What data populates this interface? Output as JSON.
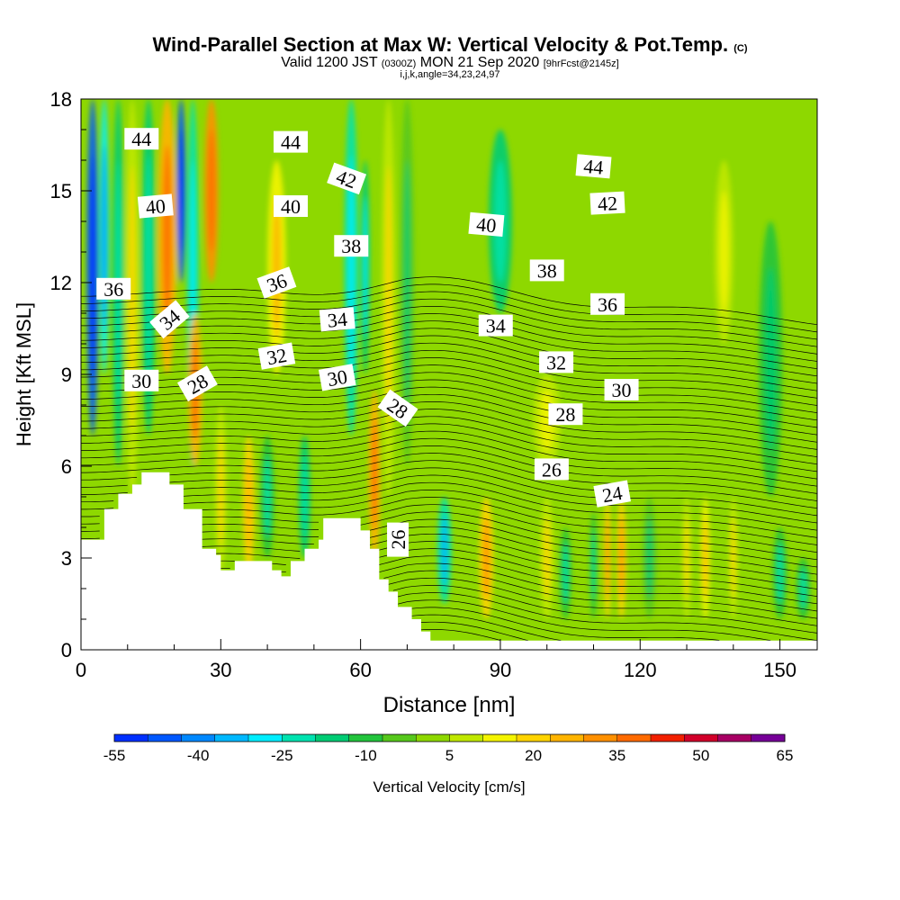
{
  "title": {
    "main": "Wind-Parallel Section at Max W: Vertical Velocity & Pot.Temp.",
    "copyright": "(C)",
    "valid_prefix": "Valid 1200 JST",
    "valid_utc": "(0300Z)",
    "valid_date": "MON 21 Sep 2020",
    "fcst": "[9hrFcst@2145z]",
    "indices": "i,j,k,angle=34,23,24,97"
  },
  "chart_data": {
    "type": "heatmap",
    "xlabel": "Distance [nm]",
    "ylabel": "Height [Kft MSL]",
    "xlim": [
      0,
      158
    ],
    "ylim": [
      0,
      18
    ],
    "x_ticks": [
      "0",
      "30",
      "60",
      "90",
      "120",
      "150"
    ],
    "y_ticks": [
      "0",
      "3",
      "6",
      "9",
      "12",
      "15",
      "18"
    ],
    "colorbar": {
      "label": "Vertical Velocity [cm/s]",
      "tick_labels": [
        "-55",
        "-40",
        "-25",
        "-10",
        "5",
        "20",
        "35",
        "50",
        "65"
      ],
      "colors": [
        "#0030ff",
        "#0058ff",
        "#0088ff",
        "#00b8ff",
        "#00eeff",
        "#00e3b0",
        "#00cc74",
        "#22c43c",
        "#56c81c",
        "#8ed800",
        "#c0e800",
        "#f4f400",
        "#ffd400",
        "#ffb400",
        "#ff9000",
        "#ff6a00",
        "#f22000",
        "#d2002a",
        "#a80064",
        "#760098"
      ],
      "range": [
        -55,
        65
      ]
    },
    "terrain_profile": {
      "x": [
        0,
        3,
        3,
        5,
        5,
        8,
        8,
        11,
        11,
        13,
        13,
        19,
        19,
        22,
        22,
        26,
        26,
        29,
        29,
        30,
        30,
        33,
        33,
        41,
        41,
        43,
        43,
        45,
        45,
        48,
        48,
        51,
        51,
        52,
        52,
        54,
        54,
        60,
        60,
        62,
        62,
        64,
        64,
        66,
        66,
        68,
        68,
        71,
        71,
        73,
        73,
        75,
        75,
        79,
        79,
        80,
        80,
        158
      ],
      "height": [
        3.6,
        3.6,
        3.6,
        3.6,
        4.6,
        4.6,
        5.1,
        5.1,
        5.4,
        5.4,
        5.8,
        5.8,
        5.4,
        5.4,
        4.6,
        4.6,
        3.3,
        3.3,
        3.1,
        3.1,
        2.6,
        2.6,
        2.9,
        2.9,
        2.6,
        2.6,
        2.4,
        2.4,
        2.9,
        2.9,
        3.3,
        3.3,
        3.6,
        3.6,
        4.3,
        4.3,
        4.3,
        4.3,
        3.9,
        3.9,
        3.3,
        3.3,
        2.3,
        2.3,
        1.9,
        1.9,
        1.4,
        1.4,
        1.0,
        1.0,
        0.6,
        0.6,
        0.3,
        0.3,
        0.3,
        0.3,
        0.3,
        0.3
      ]
    },
    "vertical_velocity_features": [
      {
        "x": 2.5,
        "y_range": [
          7,
          18
        ],
        "w": -45,
        "width": 2.5
      },
      {
        "x": 5,
        "y_range": [
          9,
          18
        ],
        "w": -30,
        "width": 2
      },
      {
        "x": 8,
        "y_range": [
          6,
          18
        ],
        "w": -15,
        "width": 2.5
      },
      {
        "x": 11,
        "y_range": [
          5,
          18
        ],
        "w": 8,
        "width": 3
      },
      {
        "x": 14.5,
        "y_range": [
          7,
          18
        ],
        "w": -15,
        "width": 3
      },
      {
        "x": 18.5,
        "y_range": [
          9,
          18
        ],
        "w": 25,
        "width": 4
      },
      {
        "x": 21.5,
        "y_range": [
          12,
          18
        ],
        "w": -45,
        "width": 2
      },
      {
        "x": 24,
        "y_range": [
          6,
          18
        ],
        "w": -20,
        "width": 2.5
      },
      {
        "x": 24.5,
        "y_range": [
          6,
          11
        ],
        "w": 25,
        "width": 3
      },
      {
        "x": 28,
        "y_range": [
          12,
          18
        ],
        "w": 30,
        "width": 3
      },
      {
        "x": 30,
        "y_range": [
          2.5,
          8
        ],
        "w": 10,
        "width": 2.5
      },
      {
        "x": 36,
        "y_range": [
          2.5,
          7
        ],
        "w": 18,
        "width": 2.5
      },
      {
        "x": 40,
        "y_range": [
          3,
          7
        ],
        "w": -12,
        "width": 3
      },
      {
        "x": 42,
        "y_range": [
          9,
          16
        ],
        "w": 15,
        "width": 4
      },
      {
        "x": 48,
        "y_range": [
          3,
          7
        ],
        "w": -15,
        "width": 2.5
      },
      {
        "x": 58,
        "y_range": [
          7,
          18
        ],
        "w": -20,
        "width": 3
      },
      {
        "x": 61,
        "y_range": [
          9,
          16
        ],
        "w": -18,
        "width": 2
      },
      {
        "x": 63,
        "y_range": [
          3,
          8.5
        ],
        "w": 25,
        "width": 2.5
      },
      {
        "x": 66,
        "y_range": [
          5,
          18
        ],
        "w": 10,
        "width": 3
      },
      {
        "x": 78,
        "y_range": [
          1.5,
          5
        ],
        "w": -25,
        "width": 3
      },
      {
        "x": 87,
        "y_range": [
          1,
          5
        ],
        "w": 22,
        "width": 3
      },
      {
        "x": 90,
        "y_range": [
          11,
          17
        ],
        "w": -15,
        "width": 5
      },
      {
        "x": 100,
        "y_range": [
          1,
          5
        ],
        "w": 8,
        "width": 3
      },
      {
        "x": 104,
        "y_range": [
          1,
          4
        ],
        "w": -12,
        "width": 2.5
      },
      {
        "x": 110,
        "y_range": [
          1,
          4.5
        ],
        "w": -10,
        "width": 1.5
      },
      {
        "x": 113,
        "y_range": [
          1,
          5
        ],
        "w": 20,
        "width": 1.5
      },
      {
        "x": 116,
        "y_range": [
          1,
          5
        ],
        "w": 22,
        "width": 2
      },
      {
        "x": 122,
        "y_range": [
          1,
          5
        ],
        "w": -5,
        "width": 3
      },
      {
        "x": 130,
        "y_range": [
          1,
          5
        ],
        "w": 8,
        "width": 2
      },
      {
        "x": 134,
        "y_range": [
          1,
          5
        ],
        "w": 15,
        "width": 2
      },
      {
        "x": 140,
        "y_range": [
          1,
          5
        ],
        "w": 8,
        "width": 2
      },
      {
        "x": 138,
        "y_range": [
          10,
          16
        ],
        "w": 6,
        "width": 4
      },
      {
        "x": 148,
        "y_range": [
          5,
          14
        ],
        "w": -8,
        "width": 5
      },
      {
        "x": 150,
        "y_range": [
          1,
          4
        ],
        "w": -10,
        "width": 3
      },
      {
        "x": 155,
        "y_range": [
          1,
          3
        ],
        "w": -12,
        "width": 3
      },
      {
        "x": 70,
        "y_range": [
          6,
          18
        ],
        "w": -5,
        "width": 3
      },
      {
        "x": 100,
        "y_range": [
          6,
          9
        ],
        "w": 6,
        "width": 6
      }
    ],
    "potential_temperature_contours": {
      "label_values": [
        "44",
        "44",
        "44",
        "42",
        "42",
        "40",
        "40",
        "40",
        "38",
        "38",
        "36",
        "36",
        "36",
        "34",
        "34",
        "34",
        "32",
        "32",
        "30",
        "30",
        "30",
        "28",
        "28",
        "28",
        "26",
        "26",
        "24"
      ],
      "labels": [
        {
          "text": "44",
          "x": 13,
          "y": 16.7,
          "angle": 0
        },
        {
          "text": "44",
          "x": 45,
          "y": 16.6,
          "angle": 0
        },
        {
          "text": "44",
          "x": 110,
          "y": 15.8,
          "angle": 5
        },
        {
          "text": "42",
          "x": 57,
          "y": 15.4,
          "angle": 20
        },
        {
          "text": "42",
          "x": 113,
          "y": 14.6,
          "angle": -3
        },
        {
          "text": "40",
          "x": 16,
          "y": 14.5,
          "angle": -5
        },
        {
          "text": "40",
          "x": 45,
          "y": 14.5,
          "angle": 0
        },
        {
          "text": "40",
          "x": 87,
          "y": 13.9,
          "angle": 5
        },
        {
          "text": "38",
          "x": 58,
          "y": 13.2,
          "angle": 0
        },
        {
          "text": "38",
          "x": 100,
          "y": 12.4,
          "angle": 0
        },
        {
          "text": "36",
          "x": 7,
          "y": 11.8,
          "angle": 0
        },
        {
          "text": "36",
          "x": 42,
          "y": 12.0,
          "angle": -20
        },
        {
          "text": "36",
          "x": 113,
          "y": 11.3,
          "angle": 0
        },
        {
          "text": "34",
          "x": 19,
          "y": 10.8,
          "angle": -40
        },
        {
          "text": "34",
          "x": 55,
          "y": 10.8,
          "angle": -5
        },
        {
          "text": "34",
          "x": 89,
          "y": 10.6,
          "angle": 0
        },
        {
          "text": "32",
          "x": 42,
          "y": 9.6,
          "angle": -10
        },
        {
          "text": "32",
          "x": 102,
          "y": 9.4,
          "angle": 0
        },
        {
          "text": "30",
          "x": 13,
          "y": 8.8,
          "angle": 0
        },
        {
          "text": "30",
          "x": 55,
          "y": 8.9,
          "angle": -10
        },
        {
          "text": "30",
          "x": 116,
          "y": 8.5,
          "angle": 0
        },
        {
          "text": "28",
          "x": 25,
          "y": 8.7,
          "angle": -30
        },
        {
          "text": "28",
          "x": 68,
          "y": 7.9,
          "angle": 35
        },
        {
          "text": "28",
          "x": 104,
          "y": 7.7,
          "angle": 0
        },
        {
          "text": "26",
          "x": 101,
          "y": 5.9,
          "angle": 0
        },
        {
          "text": "26",
          "x": 68,
          "y": 3.6,
          "angle": -90
        },
        {
          "text": "24",
          "x": 114,
          "y": 5.1,
          "angle": -10
        }
      ]
    }
  }
}
